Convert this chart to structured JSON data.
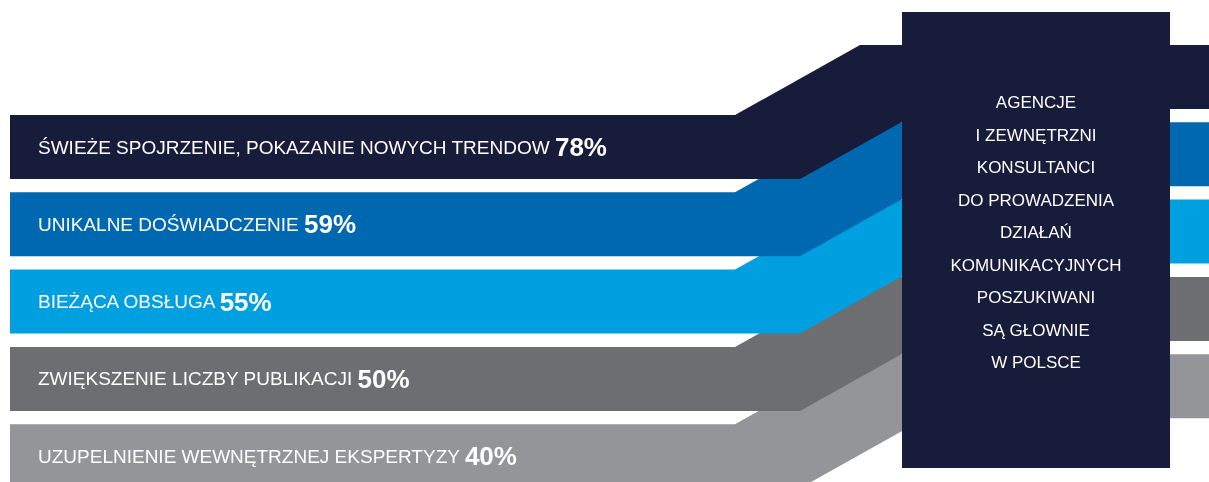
{
  "chart_data": {
    "type": "other",
    "categories": [
      "ŚWIEŻE SPOJRZENIE, POKAZANIE NOWYCH TRENDOW",
      "UNIKALNE DOŚWIADCZENIE",
      "BIEŻĄCA OBSŁUGA",
      "ZWIĘKSZENIE LICZBY PUBLIKACJI",
      "UZUPELNIENIE WEWNĘTRZNEJ EKSPERTYZY"
    ],
    "values": [
      78,
      59,
      55,
      50,
      40
    ],
    "value_labels": [
      "78%",
      "59%",
      "55%",
      "50%",
      "40%"
    ],
    "colors": [
      "#161c3a",
      "#0067b1",
      "#009fe0",
      "#6d6e71",
      "#939598"
    ],
    "annotations": [
      "AGENCJE\nI ZEWNĘTRZNI\nKONSULTANCI\nDO PROWADZENIA\nDZIAŁAŃ\nKOMUNIKACYJNYCH\nPOSZUKIWANI\nSĄ GŁOWNIE\nW POLSCE"
    ]
  }
}
